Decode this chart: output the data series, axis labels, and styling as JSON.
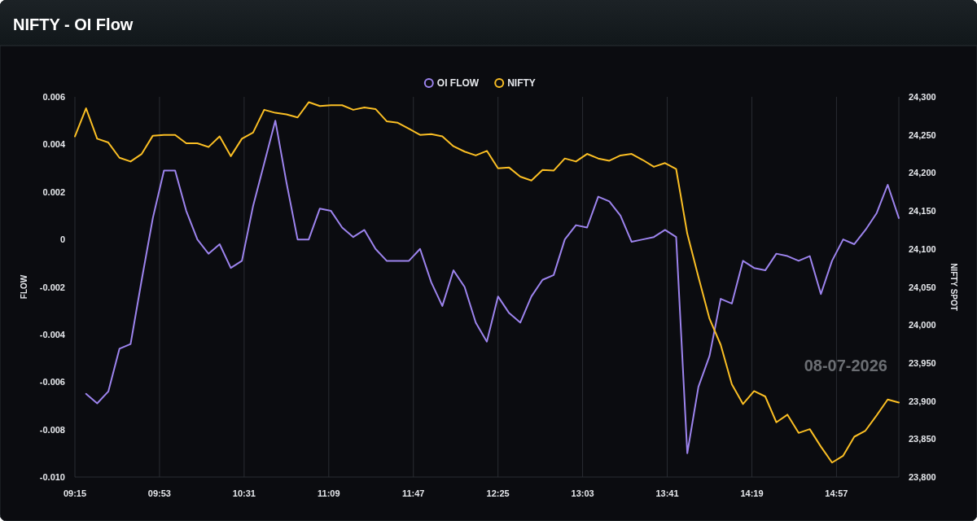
{
  "chart_data": {
    "type": "line",
    "title": "NIFTY - OI Flow",
    "ylabel": "FLOW",
    "y2label": "NIFTY SPOT",
    "x": [
      9.25,
      9.3333,
      9.4167,
      9.5,
      9.5833,
      9.6667,
      9.75,
      9.8333,
      9.9167,
      10,
      10.0833,
      10.1667,
      10.25,
      10.3333,
      10.4167,
      10.5,
      10.5833,
      10.6667,
      10.75,
      10.8333,
      10.9167,
      11,
      11.0833,
      11.1667,
      11.25,
      11.3333,
      11.4167,
      11.5,
      11.5833,
      11.6667,
      11.75,
      11.8333,
      11.9167,
      12,
      12.0833,
      12.1667,
      12.25,
      12.3333,
      12.4167,
      12.5,
      12.5833,
      12.6667,
      12.75,
      12.8333,
      12.9167,
      13,
      13.0833,
      13.1667,
      13.25,
      13.3333,
      13.4167,
      13.5,
      13.5833,
      13.6667,
      13.75,
      13.8333,
      13.9167,
      14,
      14.0833,
      14.1667,
      14.25,
      14.3333,
      14.4167,
      14.5,
      14.5833,
      14.6667,
      14.75,
      14.8333,
      14.9167,
      15,
      15.0833,
      15.1667,
      15.25,
      15.3333,
      15.4167
    ],
    "series": [
      {
        "name": "OI FLOW",
        "color": "#9d84ee",
        "values": [
          null,
          -0.0065,
          -0.0069,
          -0.0064,
          -0.0046,
          -0.0044,
          -0.0017,
          0.0009,
          0.0029,
          0.0029,
          0.0012,
          0.0,
          -0.0006,
          -0.0002,
          -0.0012,
          -0.0009,
          0.0014,
          0.0032,
          0.005,
          0.0024,
          0.0,
          0.0,
          0.0013,
          0.0012,
          0.0005,
          0.0001,
          0.0004,
          -0.0004,
          -0.0009,
          -0.0009,
          -0.0009,
          -0.0004,
          -0.0018,
          -0.0028,
          -0.0013,
          -0.002,
          -0.0035,
          -0.0043,
          -0.0024,
          -0.0031,
          -0.0035,
          -0.0024,
          -0.0017,
          -0.0015,
          0.0,
          0.0006,
          0.0005,
          0.0018,
          0.0016,
          0.001,
          -0.0001,
          0.0,
          0.0001,
          0.0004,
          0.0001,
          -0.009,
          -0.0062,
          -0.0049,
          -0.0025,
          -0.0027,
          -0.0009,
          -0.0012,
          -0.0013,
          -0.0006,
          -0.0007,
          -0.0009,
          -0.0007,
          -0.0023,
          -0.0009,
          0.0,
          -0.0002,
          0.0004,
          0.0011,
          0.0023,
          0.0009
        ]
      },
      {
        "name": "NIFTY",
        "color": "#fbbf24",
        "axis": "y2",
        "values": [
          24248,
          24285,
          24245,
          24240,
          24220,
          24215,
          24225,
          24249,
          24250,
          24250,
          24239,
          24239,
          24234,
          24248,
          24222,
          24245,
          24253,
          24283,
          24279,
          24277,
          24273,
          24293,
          24288,
          24289,
          24289,
          24283,
          24286,
          24284,
          24268,
          24266,
          24258,
          24250,
          24251,
          24248,
          24235,
          24228,
          24223,
          24229,
          24206,
          24207,
          24195,
          24190,
          24204,
          24203,
          24219,
          24215,
          24225,
          24219,
          24216,
          24223,
          24225,
          24217,
          24208,
          24213,
          24205,
          24120,
          24063,
          24008,
          23974,
          23922,
          23896,
          23913,
          23906,
          23872,
          23882,
          23858,
          23863,
          23840,
          23819,
          23828,
          23853,
          23861,
          23881,
          23902,
          23898
        ]
      }
    ],
    "xlim": [
      9.25,
      15.4167
    ],
    "xticks": [
      {
        "value": 9.25,
        "label": "09:15"
      },
      {
        "value": 9.8833,
        "label": "09:53"
      },
      {
        "value": 10.5167,
        "label": "10:31"
      },
      {
        "value": 11.15,
        "label": "11:09"
      },
      {
        "value": 11.7833,
        "label": "11:47"
      },
      {
        "value": 12.4167,
        "label": "12:25"
      },
      {
        "value": 13.05,
        "label": "13:03"
      },
      {
        "value": 13.6833,
        "label": "13:41"
      },
      {
        "value": 14.3167,
        "label": "14:19"
      },
      {
        "value": 14.95,
        "label": "14:57"
      }
    ],
    "ylim": [
      -0.01,
      0.006
    ],
    "yticks": [
      {
        "value": -0.01,
        "label": "-0.010"
      },
      {
        "value": -0.008,
        "label": "-0.008"
      },
      {
        "value": -0.006,
        "label": "-0.006"
      },
      {
        "value": -0.004,
        "label": "-0.004"
      },
      {
        "value": -0.002,
        "label": "-0.002"
      },
      0,
      {
        "value": 0.002,
        "label": "0.002"
      },
      {
        "value": 0.004,
        "label": "0.004"
      },
      {
        "value": 0.006,
        "label": "0.006"
      }
    ],
    "y2lim": [
      23800,
      24300
    ],
    "y2ticks": [
      {
        "value": 23800,
        "label": "23,800"
      },
      {
        "value": 23850,
        "label": "23,850"
      },
      {
        "value": 23900,
        "label": "23,900"
      },
      {
        "value": 23950,
        "label": "23,950"
      },
      {
        "value": 24000,
        "label": "24,000"
      },
      {
        "value": 24050,
        "label": "24,050"
      },
      {
        "value": 24100,
        "label": "24,100"
      },
      {
        "value": 24150,
        "label": "24,150"
      },
      {
        "value": 24200,
        "label": "24,200"
      },
      {
        "value": 24250,
        "label": "24,250"
      },
      {
        "value": 24300,
        "label": "24,300"
      }
    ],
    "grid": "x",
    "legend": "top",
    "marker": "none",
    "line_style": "solid",
    "annotations": [
      "08-07-2026"
    ]
  }
}
